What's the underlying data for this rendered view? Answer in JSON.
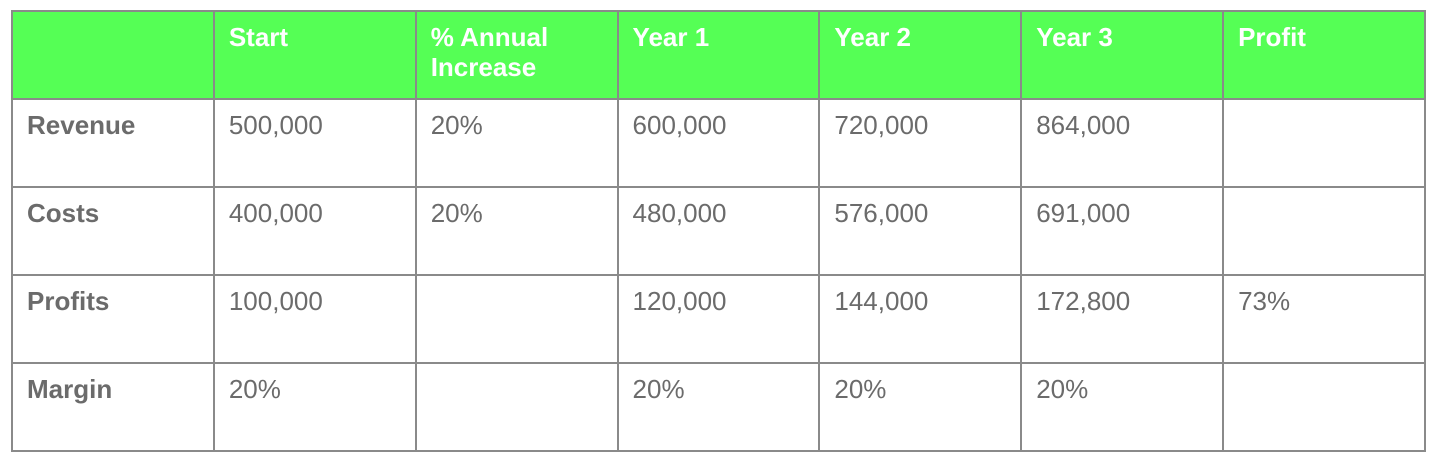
{
  "table": {
    "header": [
      null,
      "Start",
      "% Annual Increase",
      "Year 1",
      "Year 2",
      "Year 3",
      "Profit"
    ],
    "rows": [
      [
        "Revenue",
        "500,000",
        "20%",
        "600,000",
        "720,000",
        "864,000",
        null
      ],
      [
        "Costs",
        "400,000",
        "20%",
        "480,000",
        "576,000",
        "691,000",
        null
      ],
      [
        "Profits",
        "100,000",
        null,
        "120,000",
        "144,000",
        "172,800",
        "73%"
      ],
      [
        "Margin",
        "20%",
        null,
        "20%",
        "20%",
        "20%",
        null
      ]
    ]
  }
}
